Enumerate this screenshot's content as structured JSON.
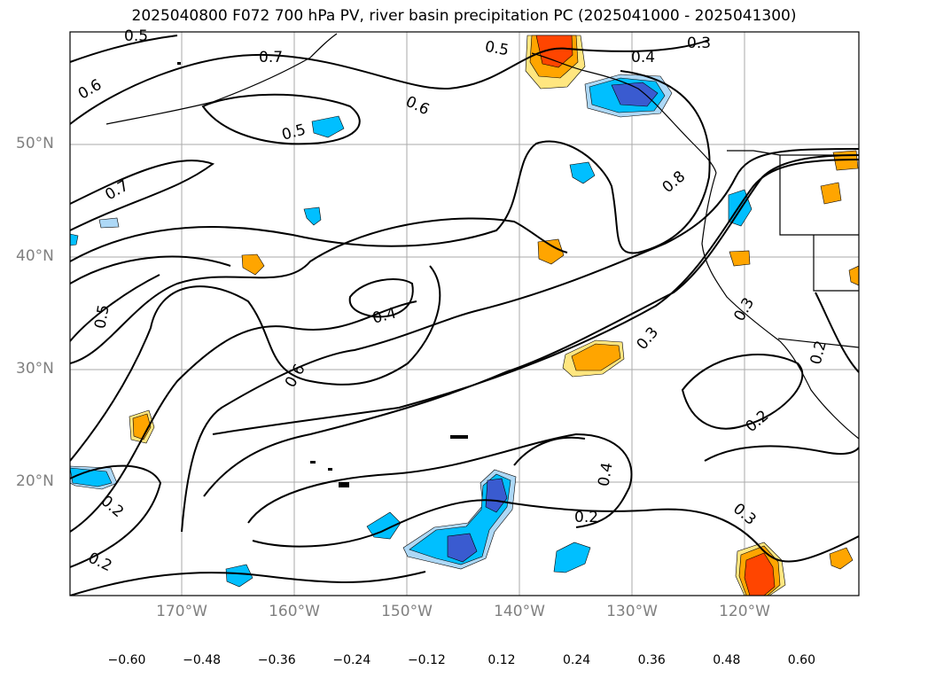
{
  "title": "2025040800 F072 700 hPa PV, river basin precipitation PC (2025041000 - 2025041300)",
  "lat_labels": [
    "50°N",
    "40°N",
    "30°N",
    "20°N"
  ],
  "lon_labels": [
    "170°W",
    "160°W",
    "150°W",
    "140°W",
    "130°W",
    "120°W"
  ],
  "contour_labels": [
    "0.5",
    "0.7",
    "0.6",
    "0.5",
    "0.5",
    "0.4",
    "0.3",
    "0.6",
    "0.7",
    "0.5",
    "0.6",
    "0.4",
    "0.8",
    "0.3",
    "0.2",
    "0.3",
    "0.2",
    "0.4",
    "0.2",
    "0.2",
    "0.2",
    "0.3"
  ],
  "colorbar": {
    "colors": [
      "#9932cc",
      "#00008b",
      "#3a5bd0",
      "#00bfff",
      "#add8f6",
      "#ffffff",
      "#ffe680",
      "#ffa500",
      "#ff4500",
      "#b22222",
      "#ff85a8"
    ],
    "ticks": [
      "−0.60",
      "−0.48",
      "−0.36",
      "−0.24",
      "−0.12",
      "0.12",
      "0.24",
      "0.36",
      "0.48",
      "0.60"
    ]
  },
  "legend_type": "horizontal colorbar with extended ends"
}
